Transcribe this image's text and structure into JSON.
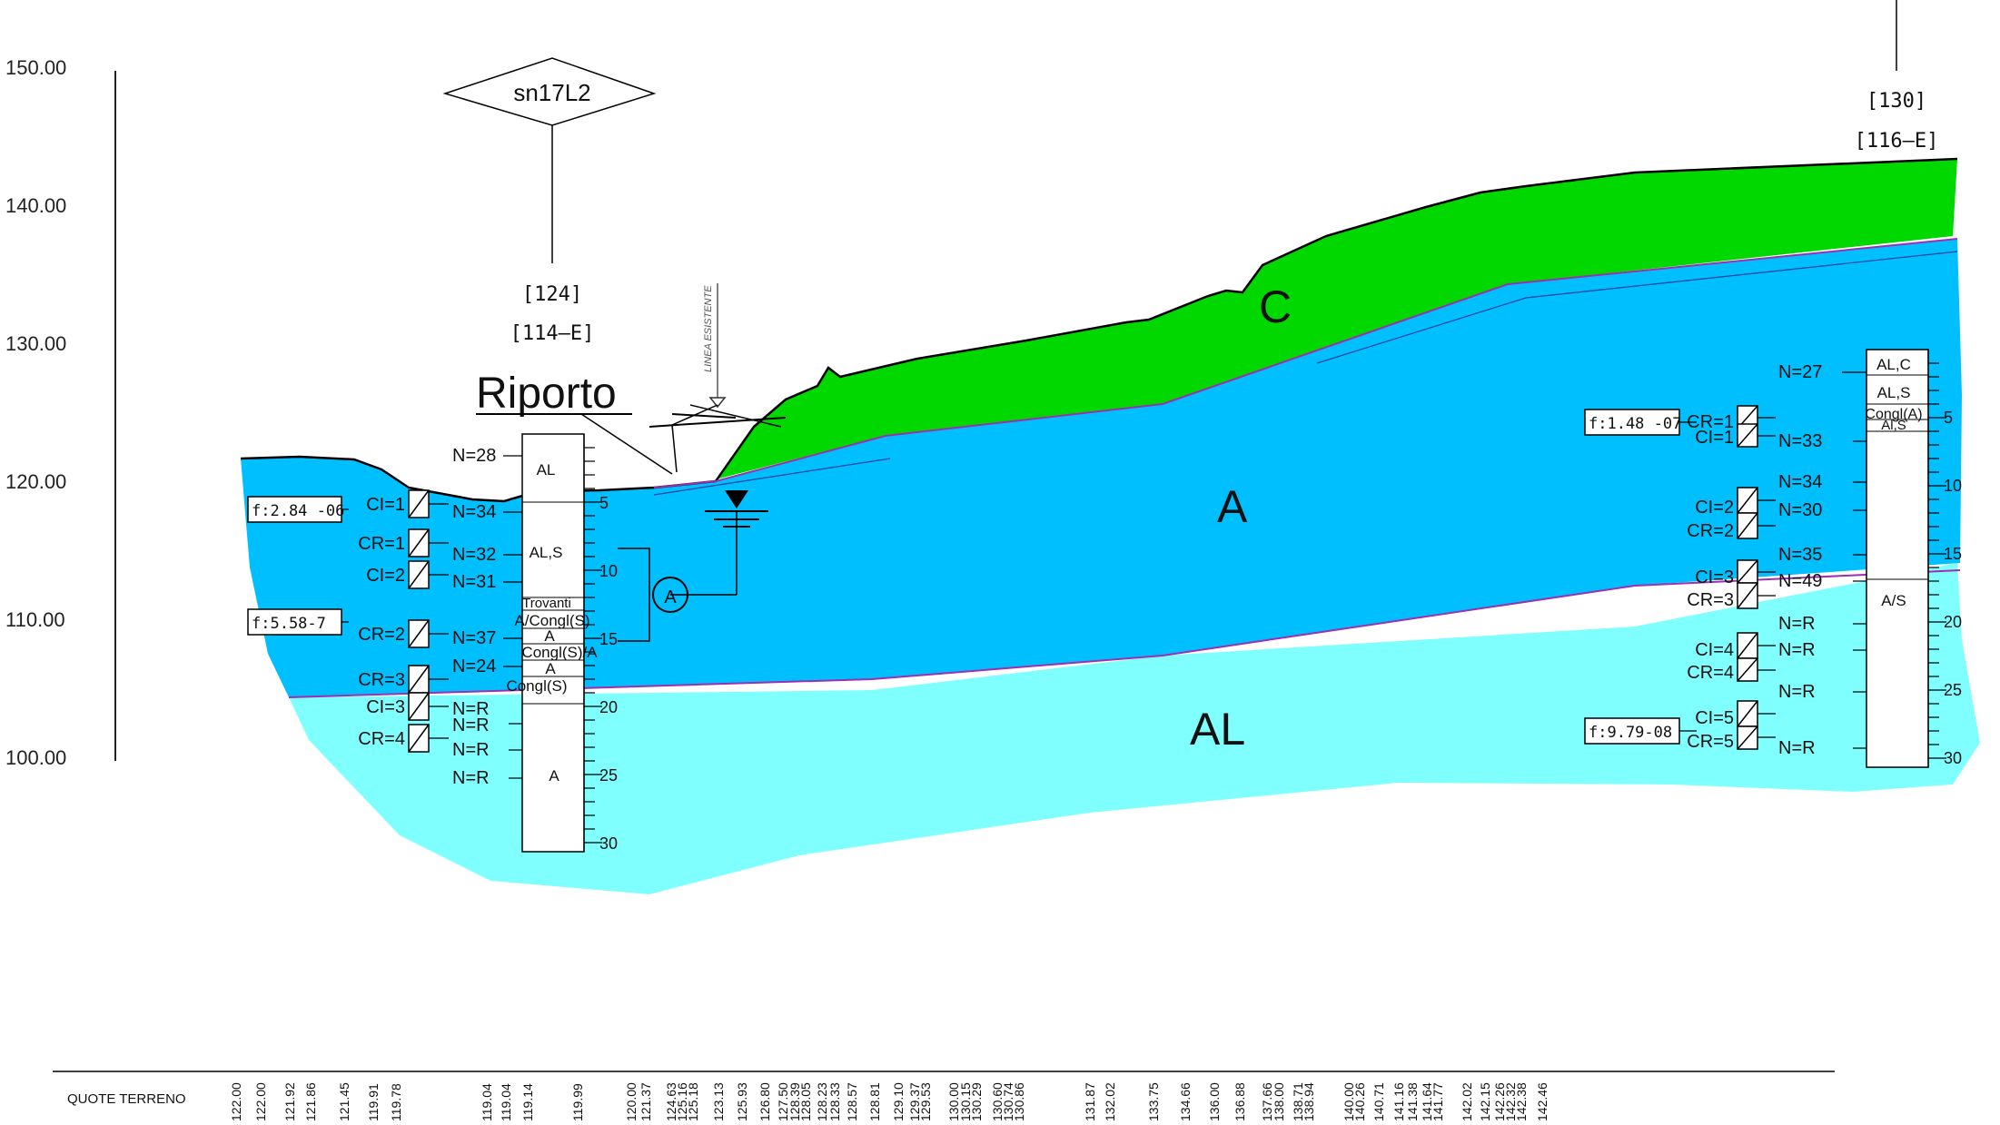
{
  "axis": {
    "elevation_labels": [
      "150.00",
      "140.00",
      "130.00",
      "120.00",
      "110.00",
      "100.00"
    ]
  },
  "zones": {
    "C": "C",
    "A": "A",
    "AL": "AL",
    "riporto": "Riporto"
  },
  "colors": {
    "zone_C": "#00d800",
    "zone_A": "#00bfff",
    "zone_AL": "#80ffff",
    "boundary": "#9b30b0"
  },
  "existing_line_label": "LINEA ESISTENTE",
  "piezometer_label": "A",
  "borehole_left": {
    "id": "sn17L2",
    "code1": "[124]",
    "code2": "[114–E]",
    "depth_ticks": [
      "5",
      "10",
      "15",
      "20",
      "25",
      "30"
    ],
    "strata": [
      "AL",
      "AL,S",
      "Trovanti",
      "A/Congl(S)",
      "A",
      "Congl(S)/A",
      "A",
      "Congl(S)",
      "A"
    ],
    "spt": [
      "N=28",
      "N=34",
      "N=32",
      "N=31",
      "N=37",
      "N=24",
      "N=R",
      "N=R",
      "N=R",
      "N=R"
    ],
    "samples": [
      "CI=1",
      "CR=1",
      "CI=2",
      "CR=2",
      "CR=3",
      "CI=3",
      "CR=4"
    ],
    "permeability": [
      "f:2.84 -06",
      "f:5.58-7"
    ]
  },
  "borehole_right": {
    "code1": "[130]",
    "code2": "[116–E]",
    "depth_ticks": [
      "5",
      "10",
      "15",
      "20",
      "25",
      "30"
    ],
    "strata": [
      "AL,C",
      "AL,S",
      "Congl(A)",
      "Al,S",
      "A/S"
    ],
    "spt": [
      "N=27",
      "N=33",
      "N=34",
      "N=30",
      "N=35",
      "N=49",
      "N=R",
      "N=R",
      "N=R",
      "N=R"
    ],
    "samples": [
      "CR=1",
      "CI=1",
      "CI=2",
      "CR=2",
      "CI=3",
      "CR=3",
      "CI=4",
      "CR=4",
      "CI=5",
      "CR=5"
    ],
    "permeability": [
      "f:1.48 -07",
      "f:9.79-08"
    ]
  },
  "ground_table": {
    "label": "QUOTE TERRENO",
    "values": [
      "122.00",
      "122.00",
      "121.92",
      "121.86",
      "121.45",
      "119.91",
      "119.78",
      "119.04",
      "119.04",
      "119.14",
      "119.99",
      "120.00",
      "121.37",
      "124.63",
      "125.16",
      "125.18",
      "123.13",
      "125.93",
      "126.80",
      "127.50",
      "128.39",
      "128.05",
      "128.23",
      "128.33",
      "128.57",
      "128.81",
      "129.10",
      "129.37",
      "129.53",
      "130.00",
      "130.15",
      "130.29",
      "130.60",
      "130.74",
      "130.86",
      "131.87",
      "132.02",
      "133.75",
      "134.66",
      "136.00",
      "136.88",
      "137.66",
      "138.00",
      "138.71",
      "138.94",
      "140.00",
      "140.26",
      "140.71",
      "141.16",
      "141.38",
      "141.64",
      "141.77",
      "142.02",
      "142.15",
      "142.26",
      "142.32",
      "142.38",
      "142.46"
    ]
  }
}
